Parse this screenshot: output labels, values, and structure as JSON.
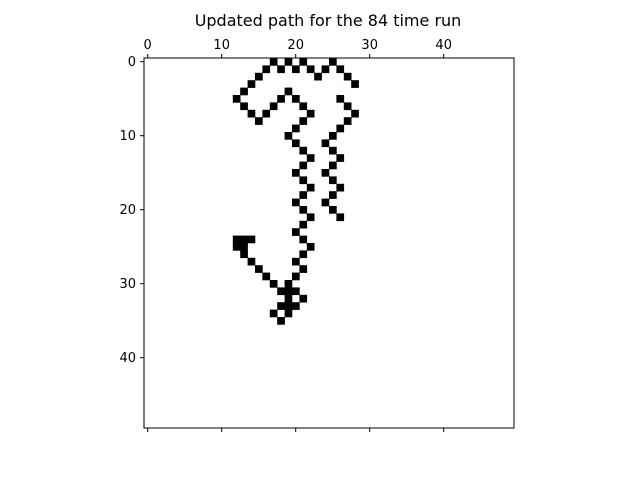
{
  "chart_data": {
    "type": "heatmap",
    "title": "Updated path for the 84 time run",
    "xlabel": "",
    "ylabel": "",
    "xlim": [
      -0.5,
      49.5
    ],
    "ylim": [
      49.5,
      -0.5
    ],
    "x_ticks": [
      0,
      10,
      20,
      30,
      40
    ],
    "y_ticks": [
      0,
      10,
      20,
      30,
      40
    ],
    "x_tick_labels": [
      "0",
      "10",
      "20",
      "30",
      "40"
    ],
    "y_tick_labels": [
      "0",
      "10",
      "20",
      "30",
      "40"
    ],
    "x_axis_position": "top",
    "grid": false,
    "colormap": "binary",
    "cell_color": "#000000",
    "background_color": "#ffffff",
    "cells": [
      [
        17,
        0
      ],
      [
        19,
        0
      ],
      [
        21,
        0
      ],
      [
        25,
        0
      ],
      [
        16,
        1
      ],
      [
        18,
        1
      ],
      [
        20,
        1
      ],
      [
        22,
        1
      ],
      [
        24,
        1
      ],
      [
        26,
        1
      ],
      [
        15,
        2
      ],
      [
        23,
        2
      ],
      [
        27,
        2
      ],
      [
        14,
        3
      ],
      [
        28,
        3
      ],
      [
        13,
        4
      ],
      [
        19,
        4
      ],
      [
        12,
        5
      ],
      [
        18,
        5
      ],
      [
        20,
        5
      ],
      [
        26,
        5
      ],
      [
        13,
        6
      ],
      [
        17,
        6
      ],
      [
        21,
        6
      ],
      [
        27,
        6
      ],
      [
        14,
        7
      ],
      [
        16,
        7
      ],
      [
        22,
        7
      ],
      [
        28,
        7
      ],
      [
        15,
        8
      ],
      [
        21,
        8
      ],
      [
        27,
        8
      ],
      [
        20,
        9
      ],
      [
        26,
        9
      ],
      [
        19,
        10
      ],
      [
        25,
        10
      ],
      [
        20,
        11
      ],
      [
        24,
        11
      ],
      [
        21,
        12
      ],
      [
        25,
        12
      ],
      [
        22,
        13
      ],
      [
        26,
        13
      ],
      [
        21,
        14
      ],
      [
        25,
        14
      ],
      [
        20,
        15
      ],
      [
        24,
        15
      ],
      [
        21,
        16
      ],
      [
        25,
        16
      ],
      [
        22,
        17
      ],
      [
        26,
        17
      ],
      [
        21,
        18
      ],
      [
        25,
        18
      ],
      [
        20,
        19
      ],
      [
        24,
        19
      ],
      [
        21,
        20
      ],
      [
        25,
        20
      ],
      [
        22,
        21
      ],
      [
        26,
        21
      ],
      [
        21,
        22
      ],
      [
        20,
        23
      ],
      [
        12,
        24
      ],
      [
        13,
        24
      ],
      [
        14,
        24
      ],
      [
        21,
        24
      ],
      [
        12,
        25
      ],
      [
        13,
        25
      ],
      [
        22,
        25
      ],
      [
        13,
        26
      ],
      [
        21,
        26
      ],
      [
        14,
        27
      ],
      [
        20,
        27
      ],
      [
        15,
        28
      ],
      [
        21,
        28
      ],
      [
        16,
        29
      ],
      [
        20,
        29
      ],
      [
        17,
        30
      ],
      [
        19,
        30
      ],
      [
        18,
        31
      ],
      [
        19,
        31
      ],
      [
        20,
        31
      ],
      [
        19,
        32
      ],
      [
        21,
        32
      ],
      [
        18,
        33
      ],
      [
        19,
        33
      ],
      [
        20,
        33
      ],
      [
        17,
        34
      ],
      [
        19,
        34
      ],
      [
        18,
        35
      ]
    ]
  }
}
